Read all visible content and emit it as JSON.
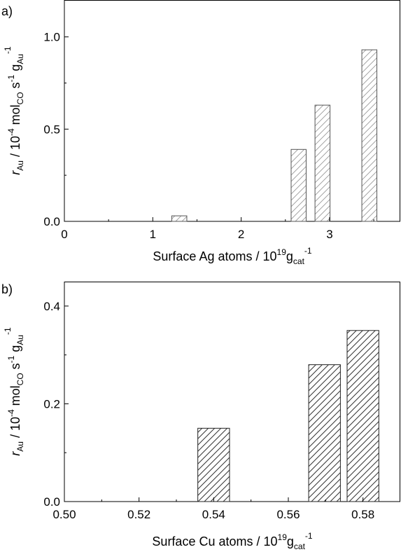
{
  "chart_data": [
    {
      "panel_label": "a)",
      "type": "bar",
      "xlabel": {
        "prefix": "Surface Ag atoms / 10",
        "exp": "19",
        "unit": "g",
        "unit_sub": "cat",
        "unit_sup": "-1"
      },
      "ylabel": {
        "r": "r",
        "r_sub": "Au",
        "mid": " / 10",
        "mid_sup": "-4",
        "mol": " mol",
        "mol_sub": "CO",
        "s": " s",
        "s_sup": "-1",
        "g": " g",
        "g_sub": "Au",
        "g_sup": "-1"
      },
      "xlim": [
        0,
        3.8
      ],
      "ylim": [
        0,
        1.2
      ],
      "xticks": [
        0,
        1,
        2,
        3
      ],
      "xtick_labels": [
        "0",
        "1",
        "2",
        "3"
      ],
      "yticks": [
        0.0,
        0.5,
        1.0
      ],
      "ytick_labels": [
        "0.0",
        "0.5",
        "1.0"
      ],
      "bar_width": 0.17,
      "hatch_color": "#9a9a9a",
      "x": [
        1.3,
        2.65,
        2.92,
        3.45
      ],
      "values": [
        0.03,
        0.39,
        0.63,
        0.93
      ]
    },
    {
      "panel_label": "b)",
      "type": "bar",
      "xlabel": {
        "prefix": "Surface Cu atoms / 10",
        "exp": "19",
        "unit": "g",
        "unit_sub": "cat",
        "unit_sup": "-1"
      },
      "ylabel": {
        "r": "r",
        "r_sub": "Au",
        "mid": " / 10",
        "mid_sup": "-4",
        "mol": " mol",
        "mol_sub": "CO",
        "s": " s",
        "s_sup": "-1",
        "g": " g",
        "g_sub": "Au",
        "g_sup": "-1"
      },
      "xlim": [
        0.5,
        0.59
      ],
      "ylim": [
        0,
        0.45
      ],
      "xticks": [
        0.5,
        0.52,
        0.54,
        0.56,
        0.58
      ],
      "xtick_labels": [
        "0.50",
        "0.52",
        "0.54",
        "0.56",
        "0.58"
      ],
      "yticks": [
        0.0,
        0.2,
        0.4
      ],
      "ytick_labels": [
        "0.0",
        "0.2",
        "0.4"
      ],
      "bar_width": 0.0085,
      "hatch_color": "#333333",
      "x": [
        0.54,
        0.5697,
        0.58
      ],
      "values": [
        0.15,
        0.28,
        0.35
      ]
    }
  ]
}
